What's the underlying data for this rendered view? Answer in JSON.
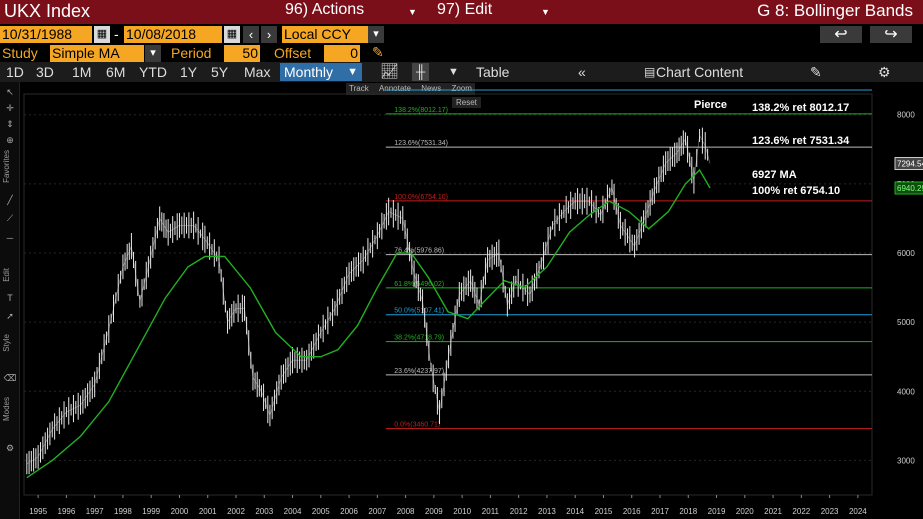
{
  "header": {
    "security": "UKX Index",
    "actions_label": "96) Actions",
    "edit_label": "97) Edit",
    "function_name": "G 8: Bollinger Bands"
  },
  "controls": {
    "start_date": "10/31/1988",
    "dash": "-",
    "end_date": "10/08/2018",
    "currency": "Local CCY",
    "study_label": "Study",
    "study_value": "Simple MA",
    "period_label": "Period",
    "period_value": "50",
    "offset_label": "Offset",
    "offset_value": "0"
  },
  "period_bar": {
    "periods": [
      "1D",
      "3D",
      "1M",
      "6M",
      "YTD",
      "1Y",
      "5Y",
      "Max"
    ],
    "frequency": "Monthly",
    "table_label": "Table",
    "chart_content_label": "Chart Content"
  },
  "mini_toolbar": {
    "track": "Track",
    "annotate": "Annotate",
    "news": "News",
    "zoom": "Zoom",
    "reset": "Reset"
  },
  "side_labels": {
    "favorites": "Favorites",
    "edit": "Edit",
    "style": "Style",
    "modes": "Modes"
  },
  "chart_data": {
    "type": "line",
    "xlim": [
      1994.5,
      2024.5
    ],
    "ylim": [
      2500,
      8300
    ],
    "x_ticks": [
      1995,
      1996,
      1997,
      1998,
      1999,
      2000,
      2001,
      2002,
      2003,
      2004,
      2005,
      2006,
      2007,
      2008,
      2009,
      2010,
      2011,
      2012,
      2013,
      2014,
      2015,
      2016,
      2017,
      2018,
      2019,
      2020,
      2021,
      2022,
      2023,
      2024
    ],
    "y_ticks": [
      3000,
      4000,
      5000,
      6000,
      7000,
      8000
    ],
    "series": [
      {
        "color": "#e8e8e8",
        "points": [
          [
            1994.6,
            2950
          ],
          [
            1995.0,
            3050
          ],
          [
            1995.5,
            3450
          ],
          [
            1996.0,
            3700
          ],
          [
            1996.5,
            3800
          ],
          [
            1997.0,
            4100
          ],
          [
            1997.5,
            4900
          ],
          [
            1998.0,
            5800
          ],
          [
            1998.3,
            6100
          ],
          [
            1998.6,
            5300
          ],
          [
            1998.9,
            5800
          ],
          [
            1999.3,
            6500
          ],
          [
            1999.6,
            6300
          ],
          [
            2000.0,
            6400
          ],
          [
            2000.5,
            6400
          ],
          [
            2000.9,
            6200
          ],
          [
            2001.4,
            5900
          ],
          [
            2001.7,
            5000
          ],
          [
            2002.0,
            5200
          ],
          [
            2002.3,
            5200
          ],
          [
            2002.6,
            4200
          ],
          [
            2002.9,
            4000
          ],
          [
            2003.2,
            3650
          ],
          [
            2003.6,
            4200
          ],
          [
            2004.0,
            4450
          ],
          [
            2004.5,
            4450
          ],
          [
            2005.0,
            4850
          ],
          [
            2005.5,
            5200
          ],
          [
            2006.0,
            5700
          ],
          [
            2006.5,
            5900
          ],
          [
            2007.0,
            6250
          ],
          [
            2007.4,
            6600
          ],
          [
            2007.9,
            6500
          ],
          [
            2008.3,
            5700
          ],
          [
            2008.6,
            5300
          ],
          [
            2008.9,
            4350
          ],
          [
            2009.2,
            3700
          ],
          [
            2009.6,
            4700
          ],
          [
            2009.9,
            5400
          ],
          [
            2010.3,
            5600
          ],
          [
            2010.6,
            5250
          ],
          [
            2010.9,
            5900
          ],
          [
            2011.3,
            6000
          ],
          [
            2011.6,
            5250
          ],
          [
            2011.9,
            5600
          ],
          [
            2012.4,
            5400
          ],
          [
            2012.8,
            5850
          ],
          [
            2013.2,
            6400
          ],
          [
            2013.6,
            6600
          ],
          [
            2014.0,
            6750
          ],
          [
            2014.5,
            6750
          ],
          [
            2014.9,
            6550
          ],
          [
            2015.3,
            6950
          ],
          [
            2015.6,
            6400
          ],
          [
            2016.1,
            6100
          ],
          [
            2016.5,
            6550
          ],
          [
            2016.8,
            6900
          ],
          [
            2017.2,
            7300
          ],
          [
            2017.6,
            7450
          ],
          [
            2017.9,
            7650
          ],
          [
            2018.2,
            7050
          ],
          [
            2018.4,
            7700
          ],
          [
            2018.6,
            7550
          ],
          [
            2018.77,
            7294.54
          ]
        ]
      },
      {
        "color": "#22b022",
        "points": [
          [
            1994.6,
            2750
          ],
          [
            1995.5,
            3000
          ],
          [
            1996.5,
            3350
          ],
          [
            1997.5,
            3850
          ],
          [
            1998.5,
            4600
          ],
          [
            1999.5,
            5350
          ],
          [
            2000.3,
            5800
          ],
          [
            2000.9,
            5950
          ],
          [
            2001.6,
            5950
          ],
          [
            2002.5,
            5500
          ],
          [
            2003.4,
            4850
          ],
          [
            2004.3,
            4500
          ],
          [
            2005.0,
            4500
          ],
          [
            2005.6,
            4600
          ],
          [
            2006.3,
            4950
          ],
          [
            2007.0,
            5500
          ],
          [
            2007.7,
            6000
          ],
          [
            2008.2,
            6000
          ],
          [
            2008.8,
            5650
          ],
          [
            2009.5,
            5150
          ],
          [
            2010.2,
            5050
          ],
          [
            2010.9,
            5350
          ],
          [
            2011.5,
            5600
          ],
          [
            2012.2,
            5500
          ],
          [
            2013.0,
            5800
          ],
          [
            2013.8,
            6300
          ],
          [
            2014.5,
            6550
          ],
          [
            2015.2,
            6750
          ],
          [
            2015.9,
            6600
          ],
          [
            2016.6,
            6350
          ],
          [
            2017.3,
            6600
          ],
          [
            2017.9,
            7000
          ],
          [
            2018.4,
            7200
          ],
          [
            2018.77,
            6940.29
          ]
        ]
      }
    ],
    "hlines": [
      {
        "label": "138.2%(8012.17)",
        "value": 8012.17,
        "color": "#22b022"
      },
      {
        "label": "123.6%(7531.34)",
        "value": 7531.34,
        "color": "#bbbbbb"
      },
      {
        "label": "100.0%(6754.10)",
        "value": 6754.1,
        "color": "#c81e1e"
      },
      {
        "label": "76.4%(5976.86)",
        "value": 5976.86,
        "color": "#bbbbbb"
      },
      {
        "label": "61.8%(5496.02)",
        "value": 5496.02,
        "color": "#22b022"
      },
      {
        "label": "50.0%(5107.41)",
        "value": 5107.41,
        "color": "#1ea0d8"
      },
      {
        "label": "38.2%(4718.79)",
        "value": 4718.79,
        "color": "#22b022"
      },
      {
        "label": "23.6%(4237.97)",
        "value": 4237.97,
        "color": "#bbbbbb"
      },
      {
        "label": "0.0%(3460.71)",
        "value": 3460.71,
        "color": "#c81e1e"
      }
    ],
    "annotations": [
      {
        "text": "Pierce"
      },
      {
        "text": "138.2% ret 8012.17"
      },
      {
        "text": "123.6% ret 7531.34"
      },
      {
        "text": "6927 MA"
      },
      {
        "text": "100% ret 6754.10"
      }
    ],
    "last_price_tag": {
      "value": 7294.54,
      "text": "7294.54",
      "color": "#cccccc"
    },
    "ma_tag": {
      "value": 6940.29,
      "text": "6940.29",
      "color": "#22b022"
    }
  }
}
